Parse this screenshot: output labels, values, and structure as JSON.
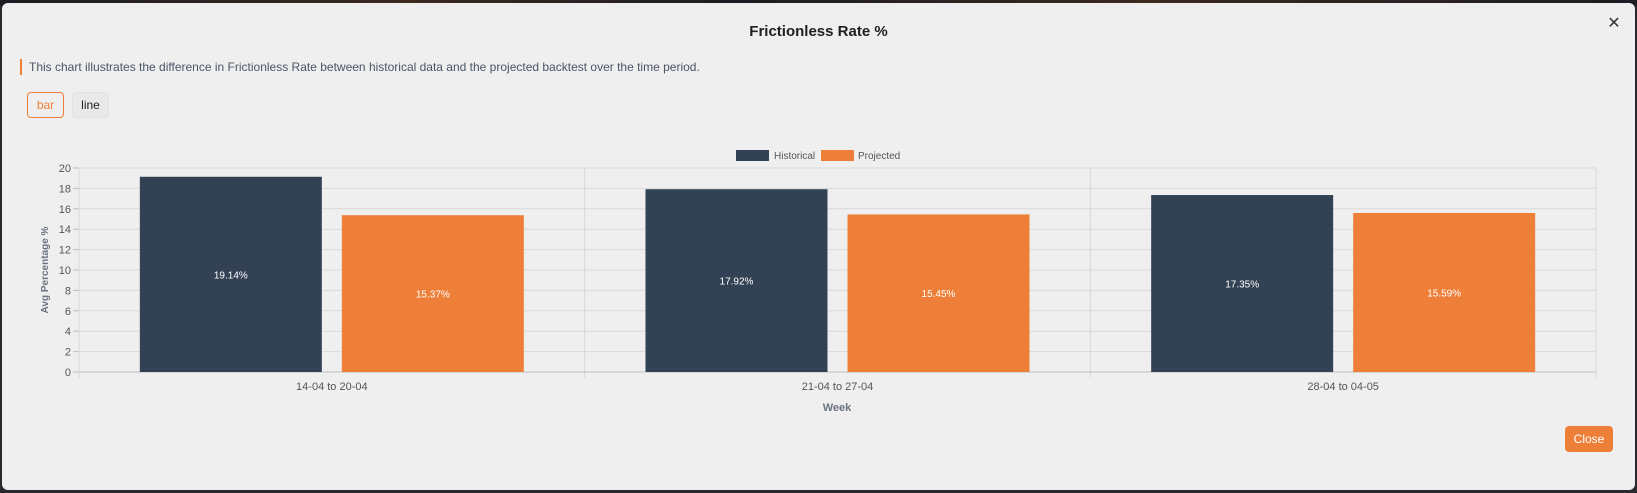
{
  "modal": {
    "title": "Frictionless Rate %",
    "close_icon": "✕",
    "description": "This chart illustrates the difference in Frictionless Rate between historical data and the projected backtest over the time period.",
    "close_label": "Close"
  },
  "tabs": [
    {
      "label": "bar",
      "active": true
    },
    {
      "label": "line",
      "active": false
    }
  ],
  "colors": {
    "historical": "#334155",
    "projected": "#ee7f38",
    "accent": "#ee7f38"
  },
  "chart_data": {
    "type": "bar",
    "categories": [
      "14-04 to 20-04",
      "21-04 to 27-04",
      "28-04 to 04-05"
    ],
    "series": [
      {
        "name": "Historical",
        "values": [
          19.14,
          17.92,
          17.35
        ],
        "labels": [
          "19.14%",
          "17.92%",
          "17.35%"
        ]
      },
      {
        "name": "Projected",
        "values": [
          15.37,
          15.45,
          15.59
        ],
        "labels": [
          "15.37%",
          "15.45%",
          "15.59%"
        ]
      }
    ],
    "xlabel": "Week",
    "ylabel": "Avg Percentage %",
    "ylim": [
      0,
      20
    ],
    "yticks": [
      0,
      2,
      4,
      6,
      8,
      10,
      12,
      14,
      16,
      18,
      20
    ],
    "grid": true,
    "legend": "top-center"
  }
}
